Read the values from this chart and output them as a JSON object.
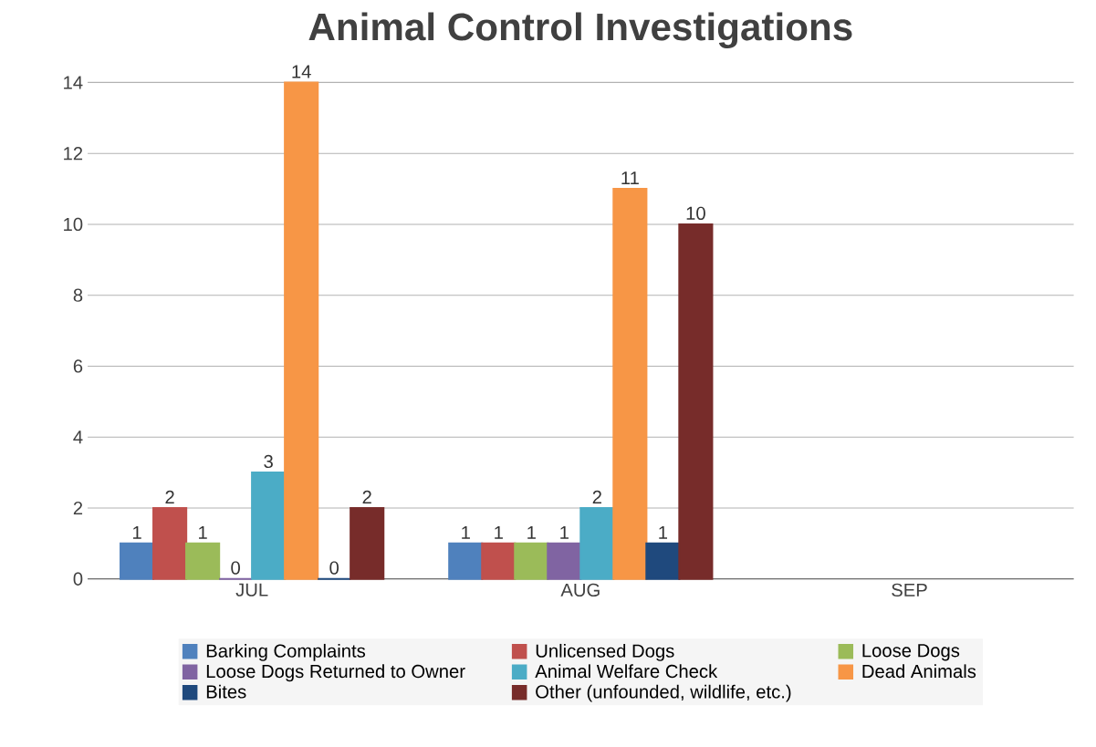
{
  "chart_data": {
    "type": "bar",
    "title": "Animal Control Investigations",
    "categories": [
      "JUL",
      "AUG",
      "SEP"
    ],
    "series": [
      {
        "name": "Barking Complaints",
        "color": "#4f81bd",
        "values": [
          1,
          1,
          null
        ]
      },
      {
        "name": "Unlicensed Dogs",
        "color": "#c0504d",
        "values": [
          2,
          1,
          null
        ]
      },
      {
        "name": "Loose Dogs",
        "color": "#9bbb59",
        "values": [
          1,
          1,
          null
        ]
      },
      {
        "name": "Loose Dogs Returned to Owner",
        "color": "#8064a2",
        "values": [
          0,
          1,
          null
        ]
      },
      {
        "name": "Animal Welfare Check",
        "color": "#4bacc6",
        "values": [
          3,
          2,
          null
        ]
      },
      {
        "name": "Dead Animals",
        "color": "#f79646",
        "values": [
          14,
          11,
          null
        ]
      },
      {
        "name": "Bites",
        "color": "#1f497d",
        "values": [
          0,
          1,
          null
        ]
      },
      {
        "name": "Other (unfounded, wildlife, etc.)",
        "color": "#772c2a",
        "values": [
          2,
          10,
          null
        ]
      }
    ],
    "ylim": [
      0,
      14
    ],
    "yticks": [
      0,
      2,
      4,
      6,
      8,
      10,
      12,
      14
    ],
    "grid": "y",
    "legend": "bottom",
    "data_labels": true
  }
}
